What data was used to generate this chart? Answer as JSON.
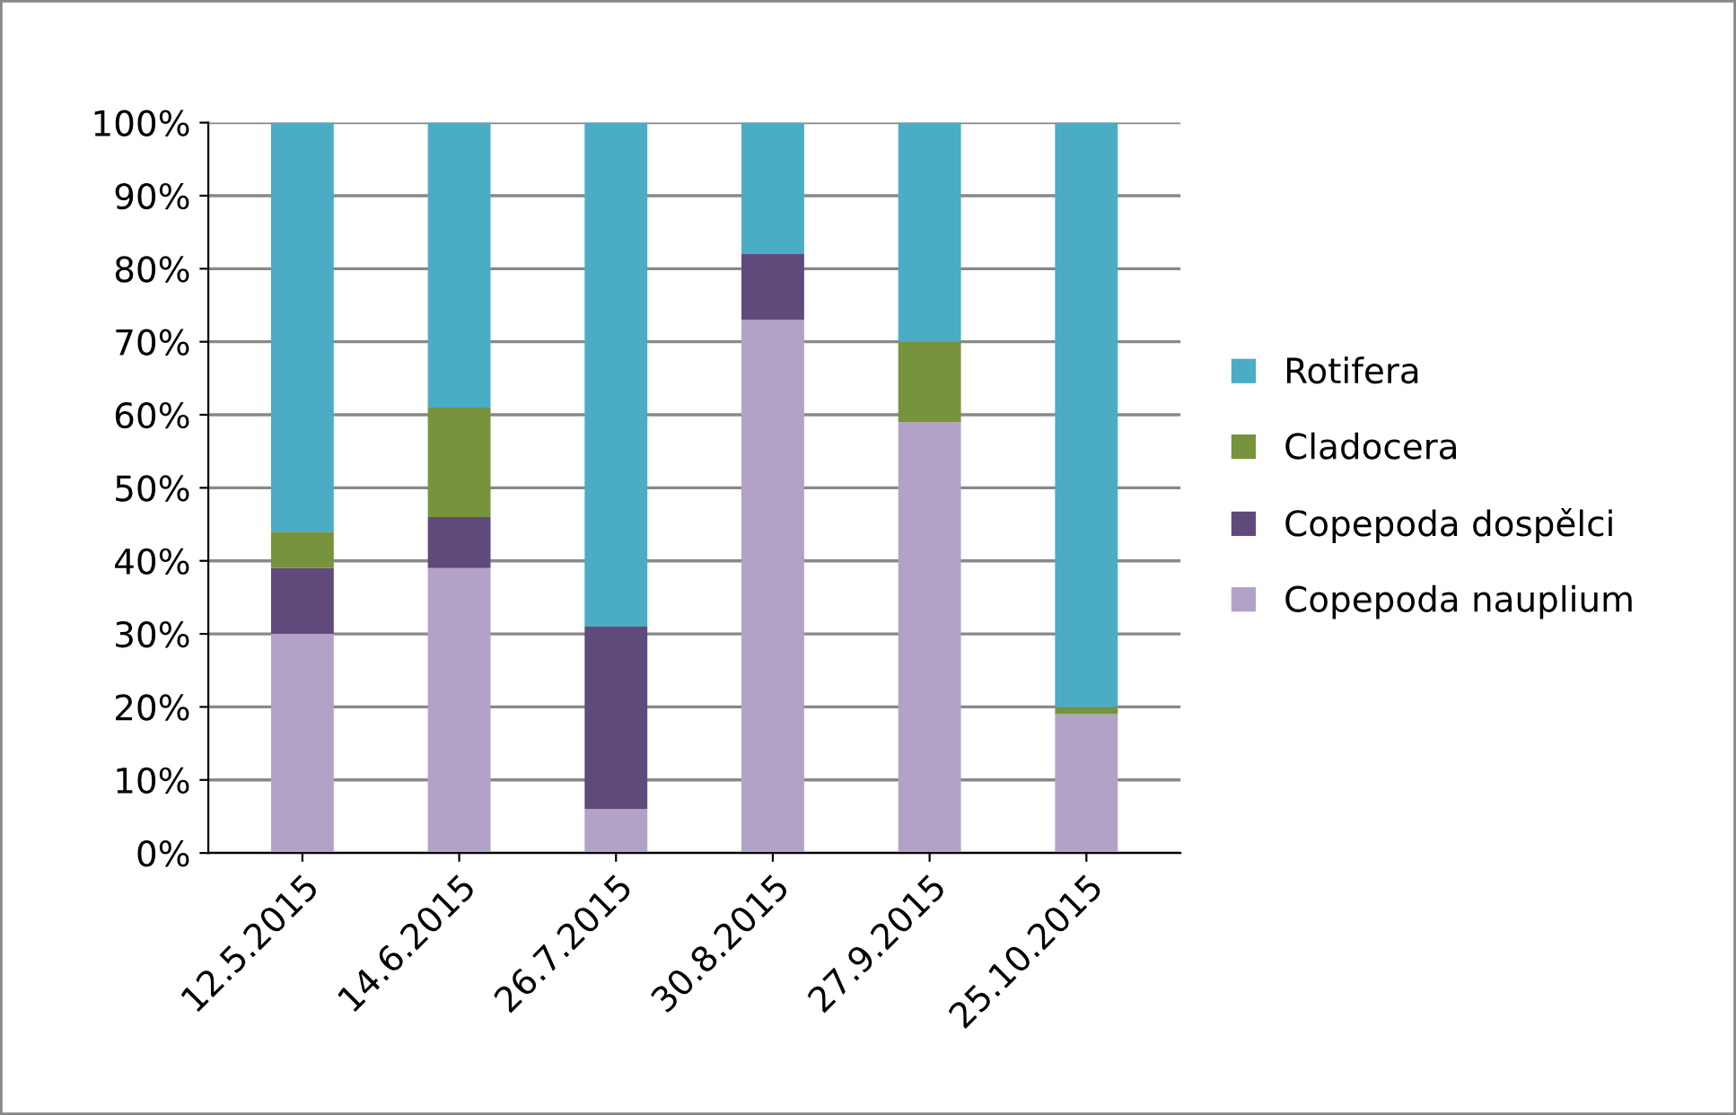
{
  "chart_data": {
    "type": "bar",
    "stacked": true,
    "categories": [
      "12.5.2015",
      "14.6.2015",
      "26.7.2015",
      "30.8.2015",
      "27.9.2015",
      "25.10.2015"
    ],
    "series": [
      {
        "name": "Copepoda nauplium",
        "color": "#b3a2c7",
        "values": [
          30,
          39,
          6,
          73,
          59,
          19
        ]
      },
      {
        "name": "Copepoda dospělci",
        "color": "#604a7b",
        "values": [
          9,
          7,
          25,
          9,
          0,
          0
        ]
      },
      {
        "name": "Cladocera",
        "color": "#77933c",
        "values": [
          5,
          15,
          0,
          0,
          11,
          1
        ]
      },
      {
        "name": "Rotifera",
        "color": "#4bacc6",
        "values": [
          56,
          39,
          69,
          18,
          30,
          80
        ]
      }
    ],
    "ylim": [
      0,
      100
    ],
    "yticks": [
      {
        "value": 0,
        "label": "0%"
      },
      {
        "value": 10,
        "label": "10%"
      },
      {
        "value": 20,
        "label": "20%"
      },
      {
        "value": 30,
        "label": "30%"
      },
      {
        "value": 40,
        "label": "40%"
      },
      {
        "value": 50,
        "label": "50%"
      },
      {
        "value": 60,
        "label": "60%"
      },
      {
        "value": 70,
        "label": "70%"
      },
      {
        "value": 80,
        "label": "80%"
      },
      {
        "value": 90,
        "label": "90%"
      },
      {
        "value": 100,
        "label": "100%"
      }
    ],
    "grid": "y",
    "legend": "right"
  }
}
